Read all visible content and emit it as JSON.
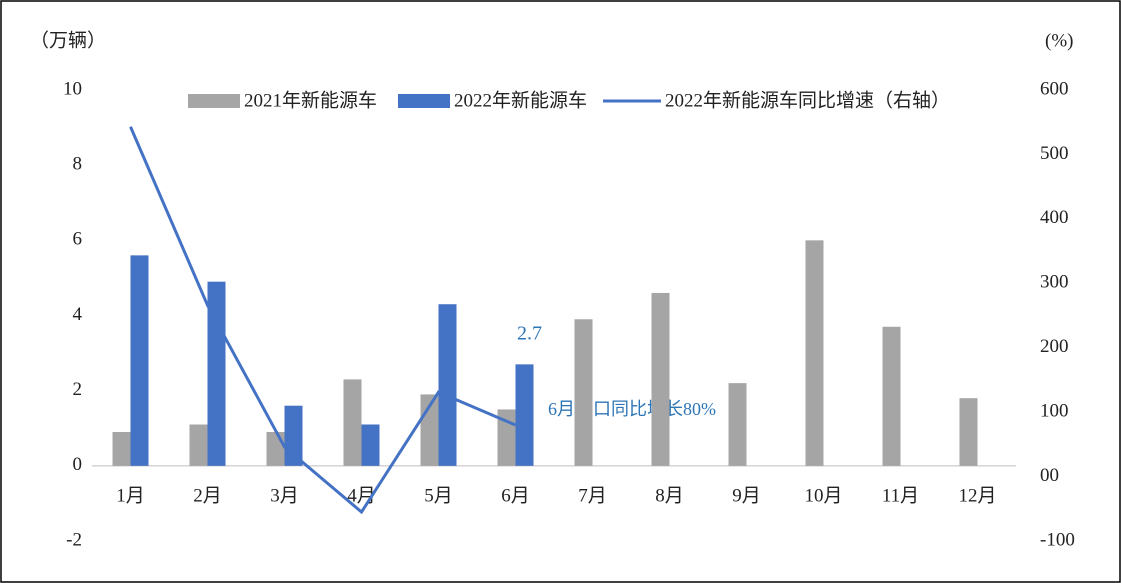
{
  "chart_data": {
    "type": "bar",
    "y_label": "（万辆）",
    "y2_label": "(%)",
    "categories": [
      "1月",
      "2月",
      "3月",
      "4月",
      "5月",
      "6月",
      "7月",
      "8月",
      "9月",
      "10月",
      "11月",
      "12月"
    ],
    "series": [
      {
        "name": "2021年新能源车",
        "color": "#a5a5a5",
        "values": [
          0.9,
          1.1,
          0.9,
          2.3,
          1.9,
          1.5,
          3.9,
          4.6,
          2.2,
          6.0,
          3.7,
          1.8
        ]
      },
      {
        "name": "2022年新能源车",
        "color": "#4472c4",
        "values": [
          5.6,
          4.9,
          1.6,
          1.1,
          4.3,
          2.7,
          null,
          null,
          null,
          null,
          null,
          null
        ]
      },
      {
        "name": "2022年新能源车同比增速（右轴）",
        "color": "#4472c4",
        "type": "line",
        "axis": "y2",
        "values": [
          543,
          266,
          46,
          -55,
          131,
          80,
          null,
          null,
          null,
          null,
          null,
          null
        ]
      }
    ],
    "ylim": [
      -2,
      10
    ],
    "yticks": [
      -2,
      0,
      2,
      4,
      6,
      8,
      10
    ],
    "y2lim": [
      -100,
      600
    ],
    "y2ticks": [
      -100,
      {
        "value": 0,
        "label": "00"
      },
      100,
      200,
      300,
      400,
      500,
      600
    ],
    "annotations": [
      "2.7",
      "6月出口同比增长80%"
    ],
    "legend": "top"
  }
}
